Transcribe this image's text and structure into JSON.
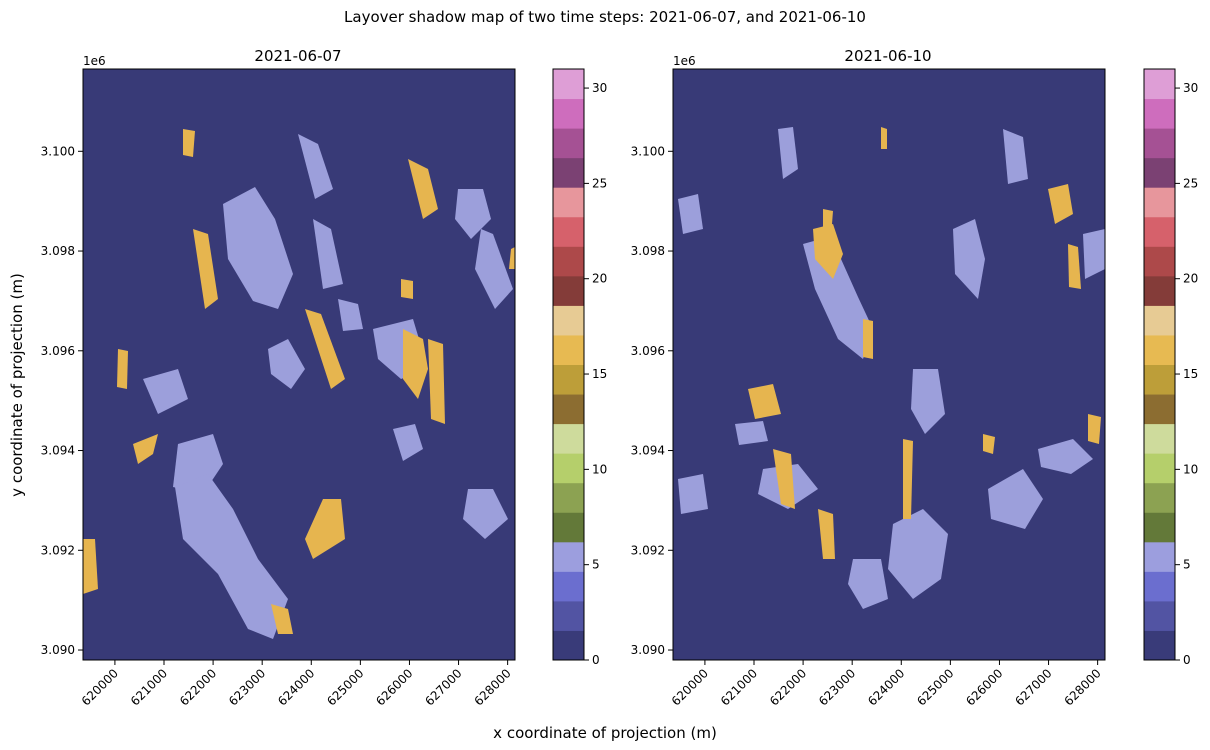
{
  "figure": {
    "suptitle": "Layover shadow map of two time steps: 2021-06-07, and 2021-06-10",
    "xlabel": "x coordinate of projection (m)",
    "ylabel": "y coordinate of projection (m)"
  },
  "palette": {
    "background_class": "#383a77",
    "layover_class": "#9c9fdb",
    "shadow_class": "#e6b54f",
    "accent_class": "#d65f5f"
  },
  "chart_data": [
    {
      "type": "heatmap",
      "title": "2021-06-07",
      "xlim": [
        619350,
        628150
      ],
      "ylim": [
        3089800,
        3091650
      ],
      "y_offset_label": "1e6",
      "x_ticks": [
        620000,
        621000,
        622000,
        623000,
        624000,
        625000,
        626000,
        627000,
        628000
      ],
      "x_tick_labels": [
        "620000",
        "621000",
        "622000",
        "623000",
        "624000",
        "625000",
        "626000",
        "627000",
        "628000"
      ],
      "y_ticks": [
        3090000,
        3092000,
        3094000,
        3096000,
        3098000,
        3100000
      ],
      "y_tick_labels": [
        "3.090",
        "3.092",
        "3.094",
        "3.096",
        "3.098",
        "3.100"
      ],
      "classes_present": [
        {
          "value": 1,
          "meaning": "background"
        },
        {
          "value": 6,
          "meaning": "layover"
        },
        {
          "value": 16,
          "meaning": "shadow"
        }
      ],
      "colorbar": {
        "range": [
          0,
          31
        ],
        "ticks": [
          0,
          5,
          10,
          15,
          20,
          25,
          30
        ],
        "tick_labels": [
          "0",
          "5",
          "10",
          "15",
          "20",
          "25",
          "30"
        ],
        "bands": [
          "#393b79",
          "#5254a3",
          "#6b6ecf",
          "#9c9ede",
          "#637939",
          "#8ca252",
          "#b5cf6b",
          "#cedb9c",
          "#8c6d31",
          "#bd9e39",
          "#e7ba52",
          "#e7cb94",
          "#843c39",
          "#ad494a",
          "#d6616b",
          "#e7969c",
          "#7b4173",
          "#a55194",
          "#ce6dbd",
          "#de9ed6"
        ]
      }
    },
    {
      "type": "heatmap",
      "title": "2021-06-10",
      "xlim": [
        619350,
        628150
      ],
      "ylim": [
        3089800,
        3091650
      ],
      "y_offset_label": "1e6",
      "x_ticks": [
        620000,
        621000,
        622000,
        623000,
        624000,
        625000,
        626000,
        627000,
        628000
      ],
      "x_tick_labels": [
        "620000",
        "621000",
        "622000",
        "623000",
        "624000",
        "625000",
        "626000",
        "627000",
        "628000"
      ],
      "y_ticks": [
        3090000,
        3092000,
        3094000,
        3096000,
        3098000,
        3100000
      ],
      "y_tick_labels": [
        "3.090",
        "3.092",
        "3.094",
        "3.096",
        "3.098",
        "3.100"
      ],
      "classes_present": [
        {
          "value": 1,
          "meaning": "background"
        },
        {
          "value": 6,
          "meaning": "layover"
        },
        {
          "value": 16,
          "meaning": "shadow"
        }
      ],
      "colorbar": {
        "range": [
          0,
          31
        ],
        "ticks": [
          0,
          5,
          10,
          15,
          20,
          25,
          30
        ],
        "tick_labels": [
          "0",
          "5",
          "10",
          "15",
          "20",
          "25",
          "30"
        ],
        "bands": [
          "#393b79",
          "#5254a3",
          "#6b6ecf",
          "#9c9ede",
          "#637939",
          "#8ca252",
          "#b5cf6b",
          "#cedb9c",
          "#8c6d31",
          "#bd9e39",
          "#e7ba52",
          "#e7cb94",
          "#843c39",
          "#ad494a",
          "#d6616b",
          "#e7969c",
          "#7b4173",
          "#a55194",
          "#ce6dbd",
          "#de9ed6"
        ]
      }
    }
  ]
}
